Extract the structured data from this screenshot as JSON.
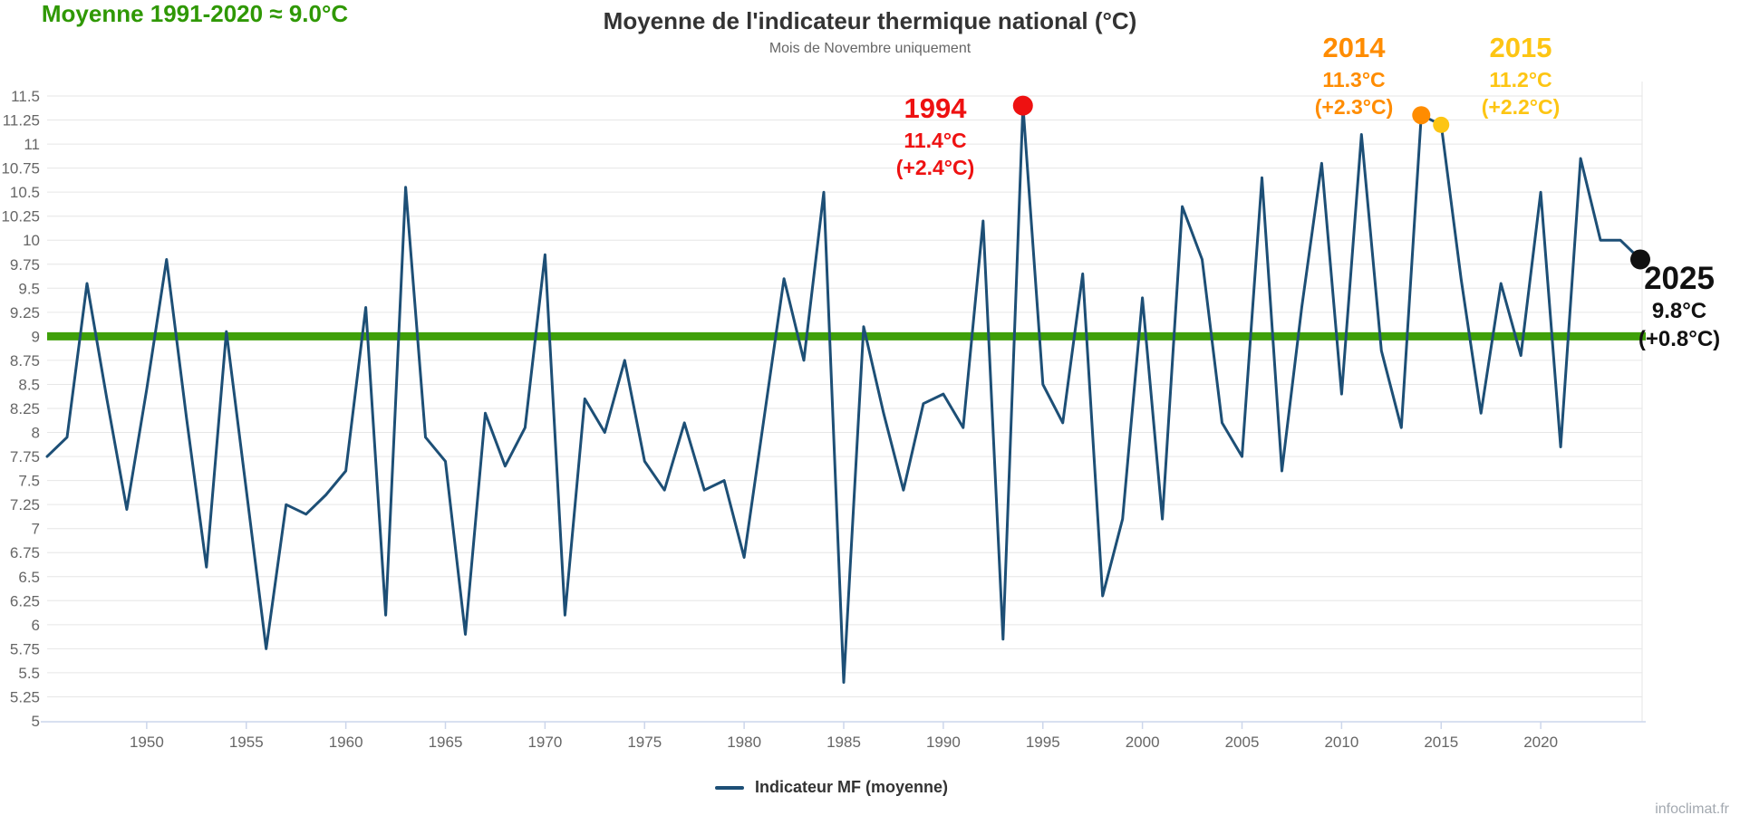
{
  "title": "Moyenne de l'indicateur thermique national (°C)",
  "subtitle": "Mois de Novembre uniquement",
  "legend": {
    "label": "Indicateur MF (moyenne)"
  },
  "watermark": "infoclimat.fr",
  "colors": {
    "series": "#1d4f76",
    "mean_line": "#3fa00a",
    "mean_text": "#2f9803",
    "red_1994": "#ee1111",
    "orange_2014": "#ff8c00",
    "yellow_2015": "#fdc513",
    "black_2025": "#111111",
    "grid": "#e6e6e6",
    "axis": "#ccd6eb",
    "axis_label": "#666666"
  },
  "annotations": {
    "y1994": {
      "year": "1994",
      "value": "11.4°C",
      "anomaly": "(+2.4°C)"
    },
    "y2014": {
      "year": "2014",
      "value": "11.3°C",
      "anomaly": "(+2.3°C)"
    },
    "y2015": {
      "year": "2015",
      "value": "11.2°C",
      "anomaly": "(+2.2°C)"
    },
    "y2025": {
      "year": "2025",
      "value": "9.8°C",
      "anomaly": "(+0.8°C)"
    },
    "mean": {
      "label": "Moyenne 1991-2020  ≈  9.0°C"
    }
  },
  "chart_data": {
    "type": "line",
    "title": "Moyenne de l'indicateur thermique national (°C)",
    "subtitle": "Mois de Novembre uniquement",
    "series_name": "Indicateur MF (moyenne)",
    "xlabel": "",
    "ylabel": "",
    "ylim": [
      5,
      11.5
    ],
    "ytick_step": 0.25,
    "xticks": [
      1950,
      1955,
      1960,
      1965,
      1970,
      1975,
      1980,
      1985,
      1990,
      1995,
      2000,
      2005,
      2010,
      2015,
      2020
    ],
    "grid": true,
    "legend_position": "bottom",
    "mean_line_value": 9.0,
    "x": [
      1945,
      1946,
      1947,
      1948,
      1949,
      1950,
      1951,
      1952,
      1953,
      1954,
      1955,
      1956,
      1957,
      1958,
      1959,
      1960,
      1961,
      1962,
      1963,
      1964,
      1965,
      1966,
      1967,
      1968,
      1969,
      1970,
      1971,
      1972,
      1973,
      1974,
      1975,
      1976,
      1977,
      1978,
      1979,
      1980,
      1981,
      1982,
      1983,
      1984,
      1985,
      1986,
      1987,
      1988,
      1989,
      1990,
      1991,
      1992,
      1993,
      1994,
      1995,
      1996,
      1997,
      1998,
      1999,
      2000,
      2001,
      2002,
      2003,
      2004,
      2005,
      2006,
      2007,
      2008,
      2009,
      2010,
      2011,
      2012,
      2013,
      2014,
      2015,
      2016,
      2017,
      2018,
      2019,
      2020,
      2021,
      2022,
      2023,
      2024,
      2025
    ],
    "values": [
      7.75,
      7.95,
      9.55,
      8.35,
      7.2,
      8.45,
      9.8,
      8.15,
      6.6,
      9.05,
      7.4,
      5.75,
      7.25,
      7.15,
      7.35,
      7.6,
      9.3,
      6.1,
      10.55,
      7.95,
      7.7,
      5.9,
      8.2,
      7.65,
      8.05,
      9.85,
      6.1,
      8.35,
      8.0,
      8.75,
      7.7,
      7.4,
      8.1,
      7.4,
      7.5,
      6.7,
      8.15,
      9.6,
      8.75,
      10.5,
      5.4,
      9.1,
      8.2,
      7.4,
      8.3,
      8.4,
      8.05,
      10.2,
      5.85,
      11.4,
      8.5,
      8.1,
      9.65,
      6.3,
      7.1,
      9.4,
      7.1,
      10.35,
      9.8,
      8.1,
      7.75,
      10.65,
      7.6,
      9.3,
      10.8,
      8.4,
      11.1,
      8.85,
      8.05,
      11.3,
      11.2,
      9.6,
      8.2,
      9.55,
      8.8,
      10.5,
      7.85,
      10.85,
      10.0,
      10.0,
      9.8
    ],
    "highlight_points": [
      {
        "year": 1994,
        "value": 11.4,
        "color": "#ee1111",
        "radius": 11
      },
      {
        "year": 2014,
        "value": 11.3,
        "color": "#ff8c00",
        "radius": 10
      },
      {
        "year": 2015,
        "value": 11.2,
        "color": "#fdc513",
        "radius": 9
      },
      {
        "year": 2025,
        "value": 9.8,
        "color": "#111111",
        "radius": 11
      }
    ]
  }
}
